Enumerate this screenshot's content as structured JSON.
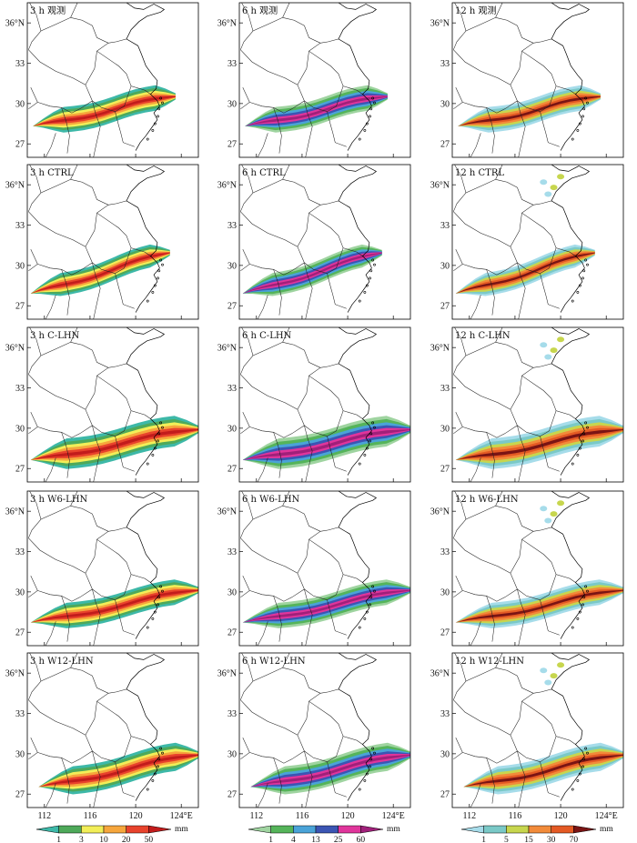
{
  "figure": {
    "rows": [
      "观测",
      "CTRL",
      "C-LHN",
      "W6-LHN",
      "W12-LHN"
    ],
    "columns": [
      {
        "accum_label": "3 h",
        "unit": "mm",
        "levels": [
          "1",
          "3",
          "10",
          "20",
          "50"
        ],
        "colors": [
          "#3db8a8",
          "#4ea95a",
          "#f2ee58",
          "#f6a63c",
          "#e8432c",
          "#c21c1c"
        ]
      },
      {
        "accum_label": "6 h",
        "unit": "mm",
        "levels": [
          "1",
          "4",
          "13",
          "25",
          "60"
        ],
        "colors": [
          "#9fd4a0",
          "#55b45a",
          "#4aa3d8",
          "#3b55b3",
          "#e0359b",
          "#a0207a"
        ]
      },
      {
        "accum_label": "12 h",
        "unit": "mm",
        "levels": [
          "1",
          "5",
          "15",
          "30",
          "70"
        ],
        "colors": [
          "#a6dcea",
          "#7ac9c7",
          "#c7d64e",
          "#f28b3a",
          "#e45a24",
          "#7a1414"
        ]
      }
    ]
  },
  "axes": {
    "lat_ticks": [
      "36°N",
      "33",
      "30",
      "27"
    ],
    "lon_ticks": [
      "112",
      "116",
      "120",
      "124°E"
    ]
  },
  "chart_data": {
    "type": "map",
    "description_panels": 15,
    "lat_range": [
      26,
      37.5
    ],
    "lon_range": [
      110.5,
      125.5
    ],
    "panels": [
      {
        "row": "观测",
        "accum": "3 h"
      },
      {
        "row": "观测",
        "accum": "6 h"
      },
      {
        "row": "观测",
        "accum": "12 h"
      },
      {
        "row": "CTRL",
        "accum": "3 h"
      },
      {
        "row": "CTRL",
        "accum": "6 h"
      },
      {
        "row": "CTRL",
        "accum": "12 h"
      },
      {
        "row": "C-LHN",
        "accum": "3 h"
      },
      {
        "row": "C-LHN",
        "accum": "6 h"
      },
      {
        "row": "C-LHN",
        "accum": "12 h"
      },
      {
        "row": "W6-LHN",
        "accum": "3 h"
      },
      {
        "row": "W6-LHN",
        "accum": "6 h"
      },
      {
        "row": "W6-LHN",
        "accum": "12 h"
      },
      {
        "row": "W12-LHN",
        "accum": "3 h"
      },
      {
        "row": "W12-LHN",
        "accum": "6 h"
      },
      {
        "row": "W12-LHN",
        "accum": "12 h"
      }
    ]
  }
}
